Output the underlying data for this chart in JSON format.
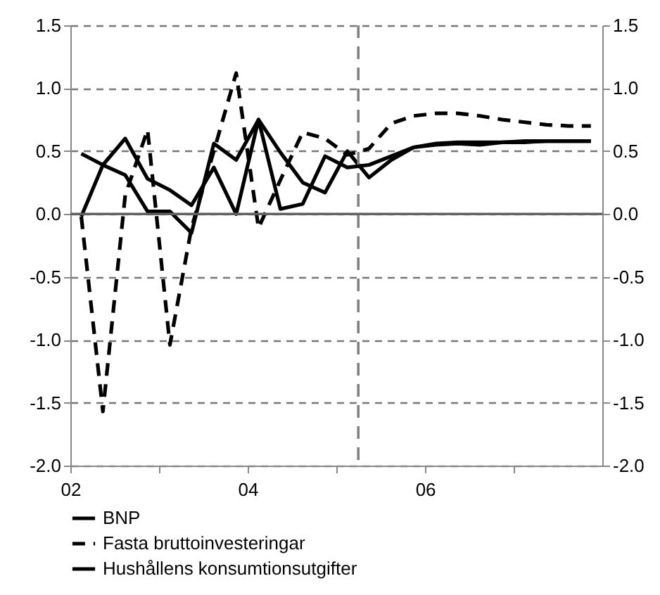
{
  "chart_data": {
    "type": "line",
    "x": [
      "2002-02-15",
      "2002-05-15",
      "2002-08-15",
      "2002-11-15",
      "2003-02-15",
      "2003-05-15",
      "2003-08-15",
      "2003-11-15",
      "2004-02-15",
      "2004-05-15",
      "2004-08-15",
      "2004-11-15",
      "2005-02-15",
      "2005-05-15",
      "2005-08-15",
      "2005-11-15",
      "2006-02-15",
      "2006-05-15",
      "2006-08-15",
      "2006-11-15",
      "2007-02-15",
      "2007-05-15",
      "2007-08-15",
      "2007-11-15"
    ],
    "series": [
      {
        "name": "BNP",
        "color": "#000000",
        "line_style": "solid",
        "values": [
          0.48,
          0.39,
          0.31,
          0.02,
          0.02,
          -0.15,
          0.56,
          0.43,
          0.75,
          0.49,
          0.25,
          0.17,
          0.5,
          0.29,
          0.43,
          0.53,
          0.56,
          0.57,
          0.57,
          0.57,
          0.58,
          0.58,
          0.58,
          0.58
        ]
      },
      {
        "name": "Fasta bruttoinvesteringar",
        "color": "#000000",
        "line_style": "dashed",
        "values": [
          -0.02,
          -1.57,
          0.15,
          0.67,
          -1.04,
          -0.11,
          0.5,
          1.12,
          -0.11,
          0.27,
          0.65,
          0.6,
          0.47,
          0.52,
          0.72,
          0.78,
          0.8,
          0.8,
          0.78,
          0.75,
          0.73,
          0.71,
          0.7,
          0.7
        ]
      },
      {
        "name": "Hushållens konsumtionsutgifter",
        "color": "#000000",
        "line_style": "solid",
        "values": [
          -0.02,
          0.39,
          0.6,
          0.28,
          0.19,
          0.07,
          0.37,
          0.0,
          0.75,
          0.04,
          0.08,
          0.46,
          0.37,
          0.39,
          0.46,
          0.53,
          0.55,
          0.56,
          0.55,
          0.57,
          0.57,
          0.58,
          0.58,
          0.58
        ]
      }
    ],
    "xlim": [
      "2002",
      "2008"
    ],
    "xticks": [
      {
        "value": "2002",
        "label": "02"
      },
      {
        "value": "2003",
        "label": null
      },
      {
        "value": "2004",
        "label": "04"
      },
      {
        "value": "2005",
        "label": null
      },
      {
        "value": "2006",
        "label": "06"
      },
      {
        "value": "2007",
        "label": null
      }
    ],
    "ylim": [
      -2,
      1.5
    ],
    "yticks": [
      {
        "value": -2,
        "label": "-2.0"
      },
      {
        "value": -1.5,
        "label": "-1.5"
      },
      {
        "value": -1,
        "label": "-1.0"
      },
      {
        "value": -0.5,
        "label": "-0.5"
      },
      {
        "value": 0,
        "label": "0.0"
      },
      {
        "value": 0.5,
        "label": "0.5"
      },
      {
        "value": 1,
        "label": "1.0"
      },
      {
        "value": 1.5,
        "label": "1.5"
      }
    ],
    "y2lim": [
      -2,
      1.5
    ],
    "y2ticks": [
      {
        "value": -2,
        "label": "-2.0"
      },
      {
        "value": -1.5,
        "label": "-1.5"
      },
      {
        "value": -1,
        "label": "-1.0"
      },
      {
        "value": -0.5,
        "label": "-0.5"
      },
      {
        "value": 0,
        "label": "0.0"
      },
      {
        "value": 0.5,
        "label": "0.5"
      },
      {
        "value": 1,
        "label": "1.0"
      },
      {
        "value": 1.5,
        "label": "1.5"
      }
    ],
    "ref_lines": [
      {
        "axis": "x",
        "value": "2005-04-01",
        "line_style": "dashed",
        "color": "#808080"
      },
      {
        "axis": "y",
        "value": 0,
        "line_style": "solid",
        "color": "#606060"
      }
    ],
    "grid": "y",
    "legend": "bottom"
  }
}
